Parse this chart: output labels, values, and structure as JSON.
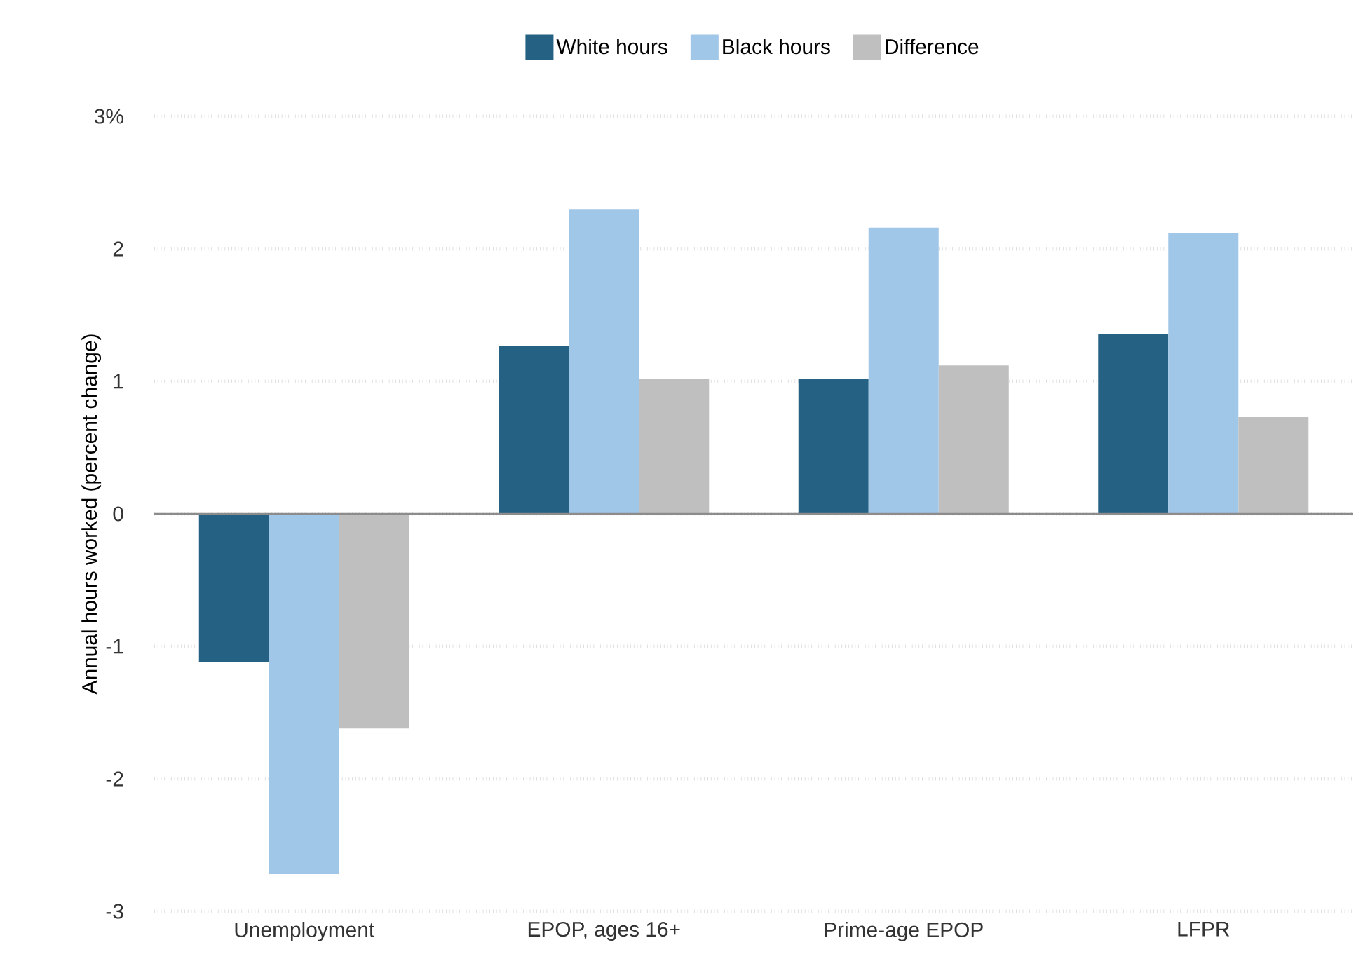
{
  "chart_data": {
    "type": "bar",
    "ylabel": "Annual hours worked (percent change)",
    "categories": [
      "Unemployment",
      "EPOP, ages 16+",
      "Prime-age EPOP",
      "LFPR"
    ],
    "series": [
      {
        "name": "White hours",
        "color": "#246182",
        "values": [
          -1.12,
          1.27,
          1.02,
          1.36
        ]
      },
      {
        "name": "Black hours",
        "color": "#a0c6e8",
        "values": [
          -2.72,
          2.3,
          2.16,
          2.12
        ]
      },
      {
        "name": "Difference",
        "color": "#bfbfbf",
        "values": [
          -1.62,
          1.02,
          1.12,
          0.73
        ]
      }
    ],
    "ylim": [
      -3,
      3
    ],
    "yticks": [
      {
        "value": -3,
        "label": "-3"
      },
      {
        "value": -2,
        "label": "-2"
      },
      {
        "value": -1,
        "label": "-1"
      },
      {
        "value": 0,
        "label": "0"
      },
      {
        "value": 1,
        "label": "1"
      },
      {
        "value": 2,
        "label": "2"
      },
      {
        "value": 3,
        "label": "3%"
      }
    ],
    "grid": "y",
    "legend": "top"
  }
}
